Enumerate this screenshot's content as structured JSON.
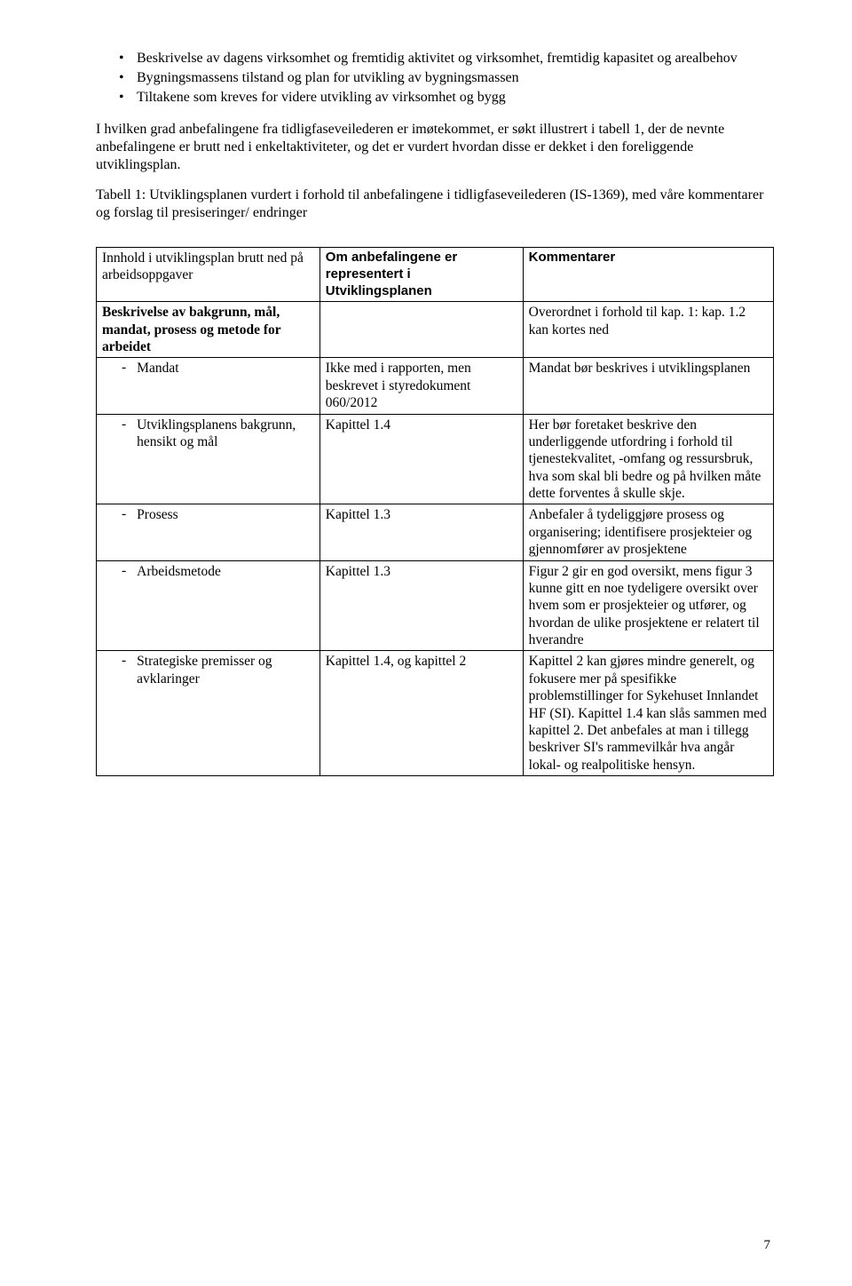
{
  "bullets": [
    "Beskrivelse av dagens virksomhet og fremtidig aktivitet og virksomhet, fremtidig kapasitet og arealbehov",
    "Bygningsmassens tilstand og plan for utvikling av bygningsmassen",
    "Tiltakene som kreves for videre utvikling av virksomhet og bygg"
  ],
  "para1": "I hvilken grad anbefalingene fra tidligfaseveilederen er imøtekommet, er søkt illustrert i tabell 1, der de nevnte anbefalingene er brutt ned i enkeltaktiviteter, og det er vurdert hvordan disse er dekket i den foreliggende utviklingsplan.",
  "para2": "Tabell 1: Utviklingsplanen vurdert i forhold til anbefalingene i tidligfaseveilederen (IS-1369), med våre kommentarer og forslag til presiseringer/ endringer",
  "table": {
    "header": {
      "c1": "Innhold i utviklingsplan brutt ned på arbeidsoppgaver",
      "c2": "Om anbefalingene er representert i Utviklingsplanen",
      "c3": "Kommentarer"
    },
    "rows": [
      {
        "c1": "Beskrivelse av bakgrunn, mål, mandat, prosess og metode for arbeidet",
        "c1_bold": true,
        "c2": "",
        "c3": "Overordnet i forhold til kap. 1: kap. 1.2 kan kortes ned"
      },
      {
        "c1": "Mandat",
        "c1_sub": true,
        "c2": "Ikke med i rapporten, men beskrevet i styredokument 060/2012",
        "c3": "Mandat bør beskrives i utviklingsplanen"
      },
      {
        "c1": "Utviklingsplanens bakgrunn, hensikt og mål",
        "c1_sub": true,
        "c2": "Kapittel 1.4",
        "c3": "Her bør foretaket beskrive den underliggende utfordring i forhold til tjenestekvalitet, -omfang og ressursbruk, hva som skal bli bedre og på hvilken måte dette forventes å skulle skje."
      },
      {
        "c1": "Prosess",
        "c1_sub": true,
        "c2": "Kapittel 1.3",
        "c3": "Anbefaler å tydeliggjøre prosess og organisering; identifisere prosjekteier og gjennomfører av prosjektene"
      },
      {
        "c1": "Arbeidsmetode",
        "c1_sub": true,
        "c2": "Kapittel 1.3",
        "c3": "Figur 2 gir en god oversikt, mens figur 3 kunne gitt en noe tydeligere oversikt over hvem som er prosjekteier og utfører, og hvordan de ulike prosjektene er relatert til hverandre"
      },
      {
        "c1": "Strategiske premisser og avklaringer",
        "c1_sub": true,
        "c2": "Kapittel 1.4, og kapittel 2",
        "c3": "Kapittel 2 kan gjøres mindre generelt, og fokusere mer på spesifikke problemstillinger for Sykehuset Innlandet HF (SI). Kapittel 1.4 kan slås sammen med kapittel 2. Det anbefales at man i tillegg beskriver SI's rammevilkår  hva angår lokal- og realpolitiske hensyn."
      }
    ]
  },
  "pageNumber": "7"
}
